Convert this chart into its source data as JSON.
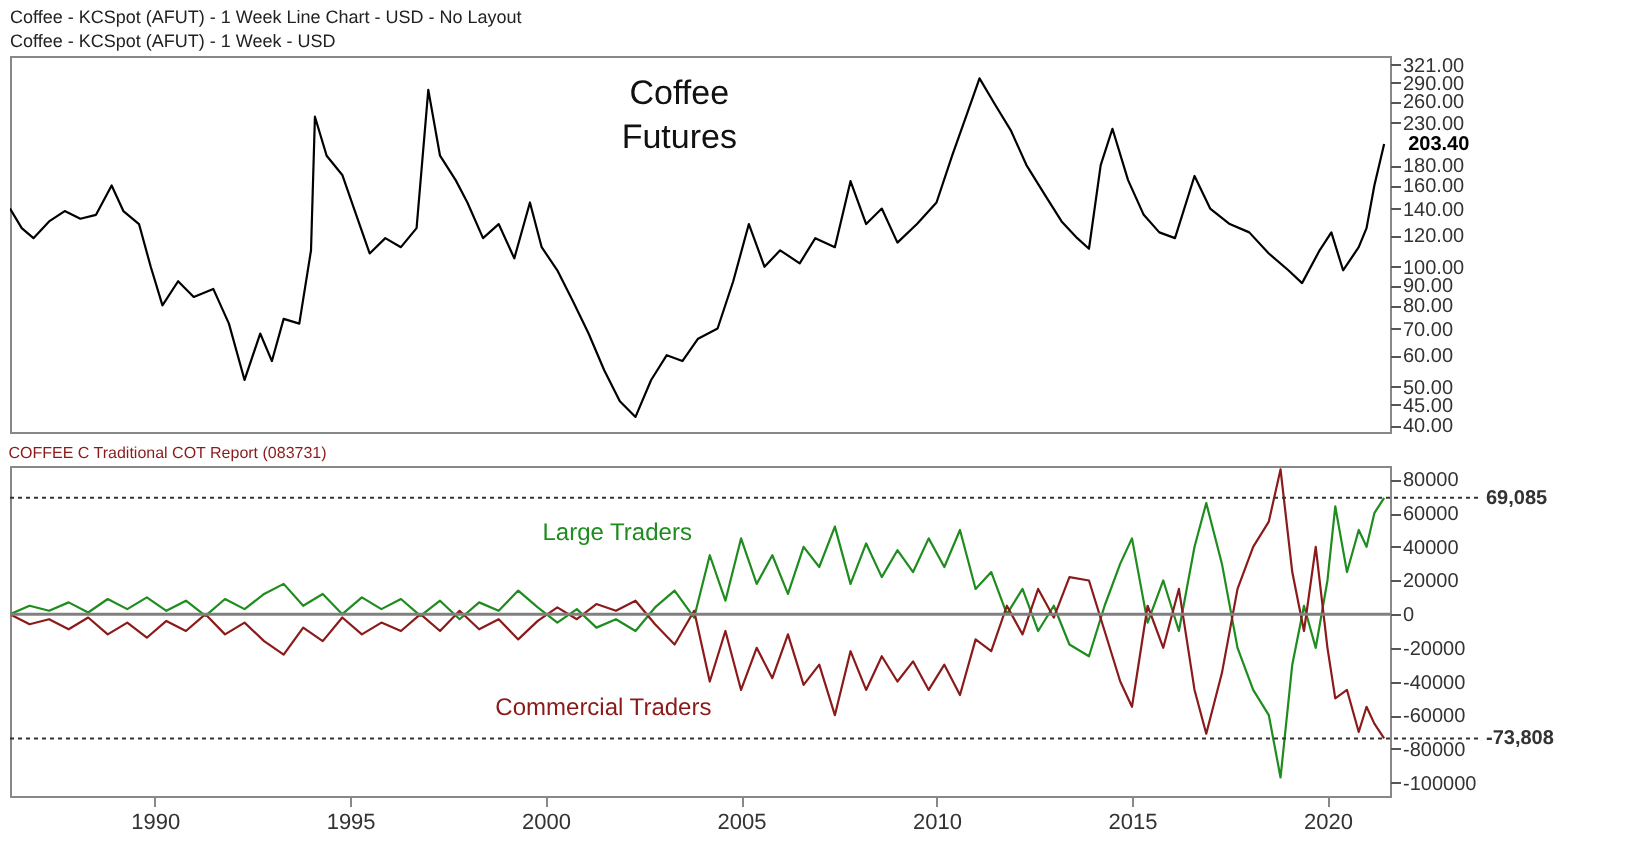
{
  "chart_data": [
    {
      "type": "line",
      "title": "Coffee Futures",
      "subtitle": "Coffee - KCSpot (AFUT) - 1 Week - USD",
      "annotations": [
        "Coffee - KCSpot (AFUT) - 1 Week Line Chart - USD - No Layout",
        {
          "text": "203.40",
          "x": 2021.45,
          "y": 203.4
        }
      ],
      "log": true,
      "tick_labels": "y",
      "color": "#000000",
      "xlim": [
        1986.3,
        2021.6
      ],
      "ylim": [
        38.5,
        338
      ],
      "yticks": [
        {
          "value": 40,
          "label": "40.00"
        },
        {
          "value": 45,
          "label": "45.00"
        },
        {
          "value": 50,
          "label": "50.00"
        },
        {
          "value": 60,
          "label": "60.00"
        },
        {
          "value": 70,
          "label": "70.00"
        },
        {
          "value": 80,
          "label": "80.00"
        },
        {
          "value": 90,
          "label": "90.00"
        },
        {
          "value": 100,
          "label": "100.00"
        },
        {
          "value": 120,
          "label": "120.00"
        },
        {
          "value": 140,
          "label": "140.00"
        },
        {
          "value": 160,
          "label": "160.00"
        },
        {
          "value": 180,
          "label": "180.00"
        },
        {
          "value": 230,
          "label": "230.00"
        },
        {
          "value": 260,
          "label": "260.00"
        },
        {
          "value": 290,
          "label": "290.00"
        },
        {
          "value": 321,
          "label": "321.00"
        }
      ],
      "x": [
        1986.3,
        1986.6,
        1986.9,
        1987.3,
        1987.7,
        1988.1,
        1988.5,
        1988.9,
        1989.2,
        1989.6,
        1989.9,
        1990.2,
        1990.6,
        1991.0,
        1991.5,
        1991.9,
        1992.3,
        1992.7,
        1993.0,
        1993.3,
        1993.7,
        1994.0,
        1994.1,
        1994.4,
        1994.8,
        1995.1,
        1995.5,
        1995.9,
        1996.3,
        1996.7,
        1997.0,
        1997.3,
        1997.7,
        1998.0,
        1998.4,
        1998.8,
        1999.2,
        1999.6,
        1999.9,
        2000.3,
        2000.7,
        2001.1,
        2001.5,
        2001.9,
        2002.3,
        2002.7,
        2003.1,
        2003.5,
        2003.9,
        2004.4,
        2004.8,
        2005.2,
        2005.6,
        2006.0,
        2006.5,
        2006.9,
        2007.4,
        2007.8,
        2008.2,
        2008.6,
        2009.0,
        2009.5,
        2010.0,
        2010.4,
        2010.8,
        2011.1,
        2011.5,
        2011.9,
        2012.3,
        2012.8,
        2013.2,
        2013.6,
        2013.9,
        2014.2,
        2014.5,
        2014.9,
        2015.3,
        2015.7,
        2016.1,
        2016.6,
        2017.0,
        2017.5,
        2018.0,
        2018.5,
        2019.0,
        2019.35,
        2019.8,
        2020.1,
        2020.4,
        2020.8,
        2021.0,
        2021.2,
        2021.45
      ],
      "values": [
        140,
        125,
        118,
        130,
        138,
        132,
        135,
        160,
        138,
        128,
        100,
        80,
        92,
        84,
        88,
        72,
        52,
        68,
        58,
        74,
        72,
        110,
        238,
        190,
        170,
        140,
        108,
        118,
        112,
        125,
        278,
        190,
        165,
        145,
        118,
        128,
        105,
        145,
        112,
        98,
        82,
        68,
        55,
        46,
        42,
        52,
        60,
        58,
        66,
        70,
        92,
        128,
        100,
        110,
        102,
        118,
        112,
        164,
        128,
        140,
        115,
        128,
        145,
        190,
        245,
        297,
        255,
        220,
        180,
        150,
        130,
        118,
        111,
        180,
        222,
        165,
        135,
        122,
        118,
        169,
        140,
        128,
        122,
        108,
        98,
        91,
        110,
        122,
        98,
        112,
        125,
        160,
        203.4
      ]
    },
    {
      "type": "line",
      "title": "COFFEE C Traditional COT Report (083731)",
      "xlim": [
        1986.3,
        2021.6
      ],
      "ylim": [
        -108000,
        88000
      ],
      "xticks": [
        1990,
        1995,
        2000,
        2005,
        2010,
        2015,
        2020
      ],
      "yticks": [
        -100000,
        -80000,
        -60000,
        -40000,
        -20000,
        0,
        20000,
        40000,
        60000,
        80000
      ],
      "ref_lines": [
        {
          "axis": "y",
          "value": 0,
          "color": "#808080",
          "line_style": "solid"
        },
        {
          "axis": "y",
          "value": 69085,
          "label": "69,085",
          "color": "#333333",
          "line_style": "dotted"
        },
        {
          "axis": "y",
          "value": -73808,
          "label": "-73,808",
          "color": "#333333",
          "line_style": "dotted"
        }
      ],
      "x": [
        1986.3,
        1986.8,
        1987.3,
        1987.8,
        1988.3,
        1988.8,
        1989.3,
        1989.8,
        1990.3,
        1990.8,
        1991.3,
        1991.8,
        1992.3,
        1992.8,
        1993.3,
        1993.8,
        1994.3,
        1994.8,
        1995.3,
        1995.8,
        1996.3,
        1996.8,
        1997.3,
        1997.8,
        1998.3,
        1998.8,
        1999.3,
        1999.8,
        2000.3,
        2000.8,
        2001.3,
        2001.8,
        2002.3,
        2002.8,
        2003.3,
        2003.8,
        2004.2,
        2004.6,
        2005.0,
        2005.4,
        2005.8,
        2006.2,
        2006.6,
        2007.0,
        2007.4,
        2007.8,
        2008.2,
        2008.6,
        2009.0,
        2009.4,
        2009.8,
        2010.2,
        2010.6,
        2011.0,
        2011.4,
        2011.8,
        2012.2,
        2012.6,
        2013.0,
        2013.4,
        2013.9,
        2014.3,
        2014.7,
        2015.0,
        2015.4,
        2015.8,
        2016.2,
        2016.6,
        2016.9,
        2017.3,
        2017.7,
        2018.1,
        2018.5,
        2018.8,
        2019.1,
        2019.4,
        2019.7,
        2020.0,
        2020.2,
        2020.5,
        2020.8,
        2021.0,
        2021.2,
        2021.45
      ],
      "series": [
        {
          "name": "Large Traders",
          "color": "#1e8c1e",
          "values": [
            0,
            5000,
            2000,
            7000,
            1000,
            9000,
            3000,
            10000,
            2000,
            8000,
            -1000,
            9000,
            3000,
            12000,
            18000,
            5000,
            12000,
            0,
            10000,
            3000,
            9000,
            -1000,
            8000,
            -3000,
            7000,
            2000,
            14000,
            4000,
            -5000,
            3000,
            -8000,
            -3000,
            -10000,
            4000,
            14000,
            -2000,
            35000,
            8000,
            45000,
            18000,
            35000,
            12000,
            40000,
            28000,
            52000,
            18000,
            42000,
            22000,
            38000,
            25000,
            45000,
            28000,
            50000,
            15000,
            25000,
            0,
            15000,
            -10000,
            5000,
            -18000,
            -25000,
            5000,
            30000,
            45000,
            -5000,
            20000,
            -10000,
            40000,
            66000,
            30000,
            -20000,
            -45000,
            -60000,
            -97000,
            -30000,
            5000,
            -20000,
            20000,
            64000,
            25000,
            50000,
            40000,
            60000,
            69085
          ]
        },
        {
          "name": "Commercial Traders",
          "color": "#8b1a1a",
          "values": [
            0,
            -6000,
            -3000,
            -9000,
            -2000,
            -12000,
            -5000,
            -14000,
            -4000,
            -10000,
            0,
            -12000,
            -5000,
            -16000,
            -24000,
            -8000,
            -16000,
            -2000,
            -12000,
            -5000,
            -10000,
            0,
            -10000,
            2000,
            -9000,
            -3000,
            -15000,
            -4000,
            4000,
            -3000,
            6000,
            2000,
            8000,
            -6000,
            -18000,
            2000,
            -40000,
            -10000,
            -45000,
            -20000,
            -38000,
            -12000,
            -42000,
            -30000,
            -60000,
            -22000,
            -45000,
            -25000,
            -40000,
            -28000,
            -45000,
            -30000,
            -48000,
            -15000,
            -22000,
            5000,
            -12000,
            15000,
            -2000,
            22000,
            20000,
            -10000,
            -40000,
            -55000,
            5000,
            -20000,
            15000,
            -45000,
            -71000,
            -35000,
            15000,
            40000,
            55000,
            86000,
            25000,
            -10000,
            40000,
            -20000,
            -50000,
            -45000,
            -70000,
            -55000,
            -65000,
            -73808
          ]
        }
      ]
    }
  ]
}
